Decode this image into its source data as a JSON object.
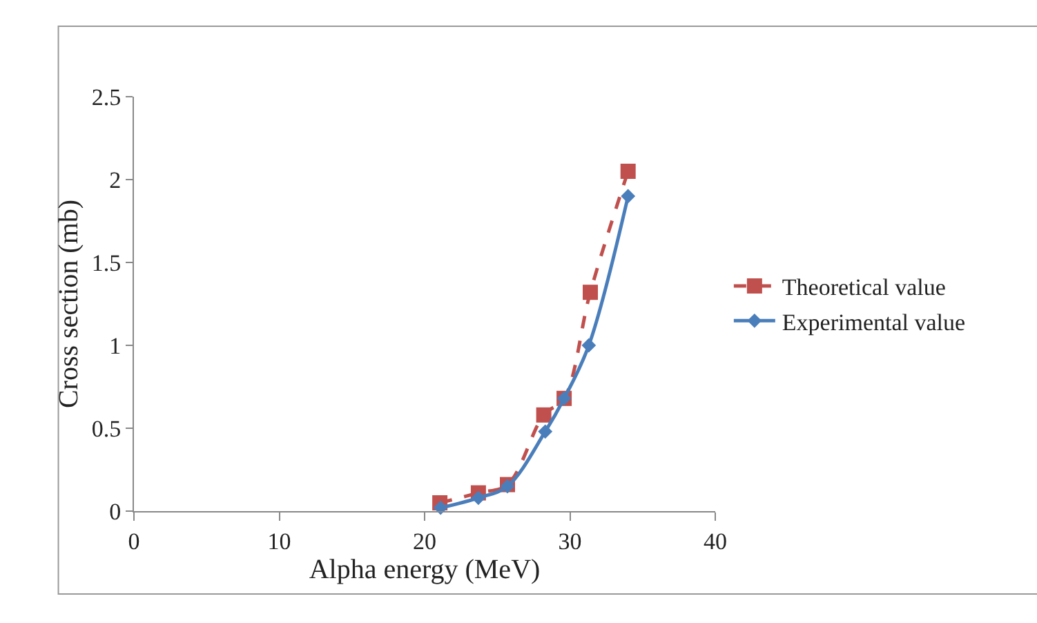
{
  "chart_data": {
    "type": "line",
    "xlabel": "Alpha energy (MeV)",
    "ylabel": "Cross section (mb)",
    "xlim": [
      0,
      40
    ],
    "xticks": [
      0,
      10,
      20,
      30,
      40
    ],
    "ylim": [
      0,
      2.5
    ],
    "yticks": [
      0,
      0.5,
      1,
      1.5,
      2,
      2.5
    ],
    "grid": false,
    "legend": "right",
    "series": [
      {
        "name": "Theoretical value",
        "color": "#c0504d",
        "marker": "square",
        "line_style": "dashed",
        "x": [
          21.05,
          23.7,
          25.7,
          28.2,
          29.6,
          31.4,
          34.0
        ],
        "values": [
          0.05,
          0.11,
          0.16,
          0.58,
          0.68,
          1.32,
          2.05
        ]
      },
      {
        "name": "Experimental value",
        "color": "#4a7ebb",
        "marker": "diamond",
        "line_style": "solid",
        "x": [
          21.1,
          23.7,
          25.7,
          28.3,
          29.6,
          31.3,
          34.0
        ],
        "values": [
          0.02,
          0.08,
          0.15,
          0.48,
          0.68,
          1.0,
          1.9
        ]
      }
    ]
  }
}
